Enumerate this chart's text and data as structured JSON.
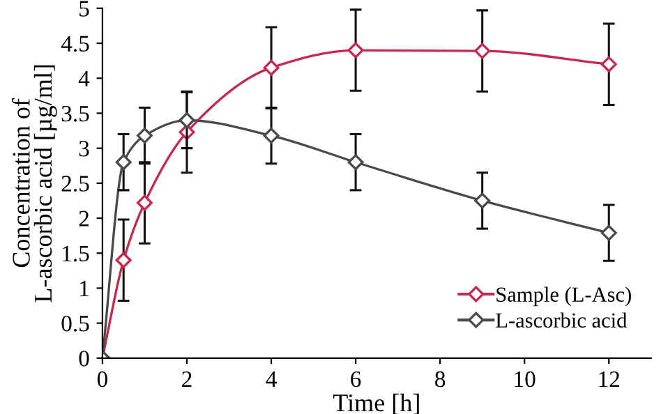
{
  "chart_data": {
    "type": "line",
    "xlabel": "Time [h]",
    "ylabel": "Concentration of\nL-ascorbic acid [µg/ml]",
    "xlim": [
      0,
      13
    ],
    "xticks": [
      0,
      2,
      4,
      6,
      8,
      10,
      12
    ],
    "ylim": [
      0,
      5
    ],
    "yticks": [
      0,
      0.5,
      1,
      1.5,
      2,
      2.5,
      3,
      3.5,
      4,
      4.5,
      5
    ],
    "marker": "diamond",
    "grid": false,
    "legend": "bottom right",
    "series": [
      {
        "name": "Sample (L-Asc)",
        "color": "#c8284f",
        "x": [
          0,
          0.5,
          1,
          2,
          4,
          6,
          9,
          12
        ],
        "values": [
          0,
          1.4,
          2.22,
          3.23,
          4.15,
          4.4,
          4.39,
          4.2
        ],
        "errors": [
          null,
          0.58,
          0.58,
          0.58,
          0.58,
          0.58,
          0.58,
          0.58
        ]
      },
      {
        "name": "L-ascorbic acid",
        "color": "#4a4a4a",
        "x": [
          0,
          0.5,
          1,
          2,
          4,
          6,
          9,
          12
        ],
        "values": [
          0,
          2.8,
          3.18,
          3.4,
          3.18,
          2.8,
          2.25,
          1.79
        ],
        "errors": [
          null,
          0.4,
          0.4,
          0.4,
          0.4,
          0.4,
          0.4,
          0.4
        ]
      }
    ]
  }
}
